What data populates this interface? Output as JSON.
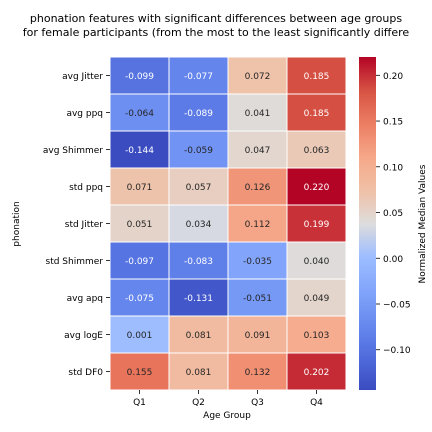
{
  "chart_data": {
    "type": "heatmap",
    "title_lines": [
      "phonation features with significant differences between age groups",
      "for female participants (from the most to the least significantly differe"
    ],
    "xlabel": "Age Group",
    "ylabel": "phonation",
    "x_categories": [
      "Q1",
      "Q2",
      "Q3",
      "Q4"
    ],
    "y_categories": [
      "avg Jitter",
      "avg ppq",
      "avg Shimmer",
      "std ppq",
      "std Jitter",
      "std Shimmer",
      "avg apq",
      "avg logE",
      "std DF0"
    ],
    "values": [
      [
        -0.099,
        -0.077,
        0.072,
        0.185
      ],
      [
        -0.064,
        -0.089,
        0.041,
        0.185
      ],
      [
        -0.144,
        -0.059,
        0.047,
        0.063
      ],
      [
        0.071,
        0.057,
        0.126,
        0.22
      ],
      [
        0.051,
        0.034,
        0.112,
        0.199
      ],
      [
        -0.097,
        -0.083,
        -0.035,
        0.04
      ],
      [
        -0.075,
        -0.131,
        -0.051,
        0.049
      ],
      [
        0.001,
        0.081,
        0.091,
        0.103
      ],
      [
        0.155,
        0.081,
        0.132,
        0.202
      ]
    ],
    "value_labels": [
      [
        "-0.099",
        "-0.077",
        "0.072",
        "0.185"
      ],
      [
        "-0.064",
        "-0.089",
        "0.041",
        "0.185"
      ],
      [
        "-0.144",
        "-0.059",
        "0.047",
        "0.063"
      ],
      [
        "0.071",
        "0.057",
        "0.126",
        "0.220"
      ],
      [
        "0.051",
        "0.034",
        "0.112",
        "0.199"
      ],
      [
        "-0.097",
        "-0.083",
        "-0.035",
        "0.040"
      ],
      [
        "-0.075",
        "-0.131",
        "-0.051",
        "0.049"
      ],
      [
        "0.001",
        "0.081",
        "0.091",
        "0.103"
      ],
      [
        "0.155",
        "0.081",
        "0.132",
        "0.202"
      ]
    ],
    "colorbar": {
      "label": "Normalized Median Values",
      "colormap": "coolwarm",
      "vmin": -0.144,
      "vmax": 0.22,
      "ticks": [
        -0.1,
        -0.05,
        0.0,
        0.05,
        0.1,
        0.15,
        0.2
      ],
      "tick_labels": [
        "−0.10",
        "−0.05",
        "0.00",
        "0.05",
        "0.10",
        "0.15",
        "0.20"
      ]
    },
    "grid": false,
    "cell_border_color": "#ffffff"
  }
}
